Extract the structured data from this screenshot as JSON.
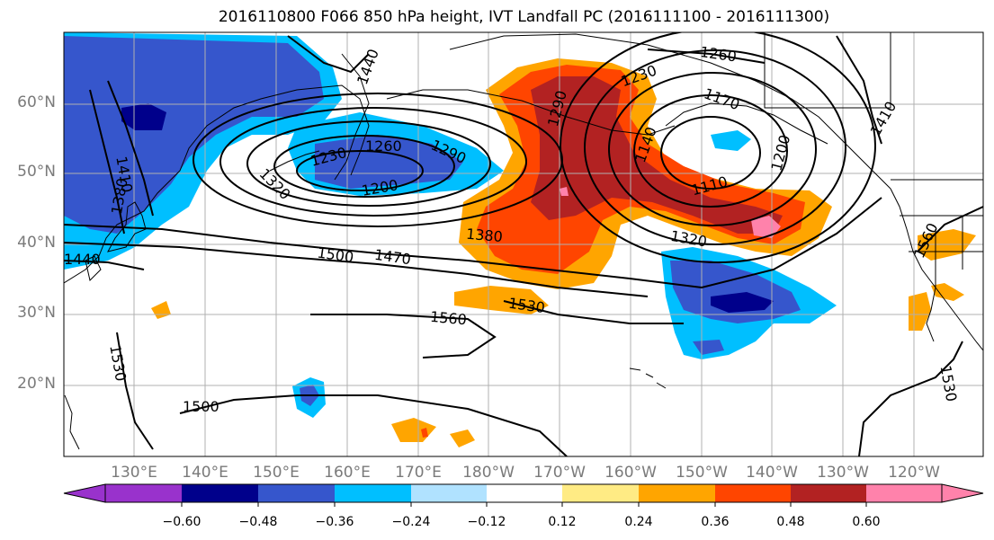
{
  "title": "2016110800 F066 850 hPa height, IVT Landfall PC (2016111100 - 2016111300)",
  "lat_labels": [
    "60°N",
    "50°N",
    "40°N",
    "30°N",
    "20°N"
  ],
  "lon_labels": [
    "130°E",
    "140°E",
    "150°E",
    "160°E",
    "170°E",
    "180°W",
    "170°W",
    "160°W",
    "150°W",
    "140°W",
    "130°W",
    "120°W"
  ],
  "colorbar": {
    "ticks": [
      "−0.60",
      "−0.48",
      "−0.36",
      "−0.24",
      "−0.12",
      "0.12",
      "0.24",
      "0.36",
      "0.48",
      "0.60"
    ],
    "colors": [
      "#9932cc",
      "#00008b",
      "#3656cc",
      "#00bfff",
      "#b0e2ff",
      "#ffffff",
      "#ffeb84",
      "#ffa500",
      "#ff4500",
      "#b22222",
      "#ff82ab"
    ]
  },
  "contour_labels": [
    "1440",
    "1260",
    "1230",
    "1290",
    "1200",
    "1320",
    "1380",
    "1410",
    "1230",
    "1290",
    "1140",
    "1170",
    "1110",
    "1200",
    "1320",
    "1260",
    "1410",
    "1380",
    "1500",
    "1470",
    "1530",
    "1560",
    "1440",
    "1530",
    "1500",
    "1560",
    "1530"
  ]
}
